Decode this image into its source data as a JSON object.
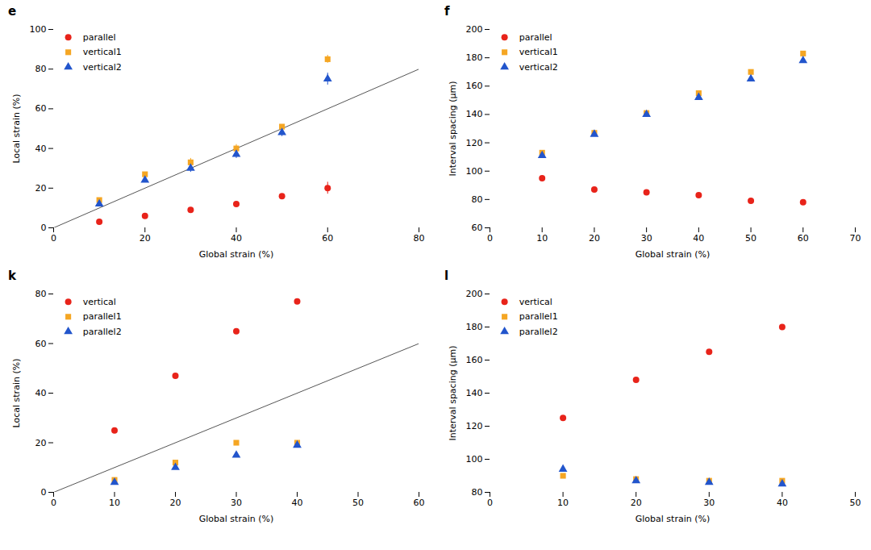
{
  "chart_data": [
    {
      "type": "scatter",
      "title": "e",
      "xlabel": "Global strain (%)",
      "ylabel": "Local strain (%)",
      "xlim": [
        0,
        80
      ],
      "ylim": [
        0,
        100
      ],
      "xticks": [
        0,
        20,
        40,
        60,
        80
      ],
      "yticks": [
        0,
        20,
        40,
        60,
        80,
        100
      ],
      "legend": "upper left",
      "series": [
        {
          "type": "line",
          "color": "#555555",
          "x": [
            0,
            80
          ],
          "values": [
            0,
            80
          ]
        },
        {
          "name": "parallel",
          "color": "#e8231a",
          "marker": "circle",
          "x": [
            10,
            20,
            30,
            40,
            50,
            60
          ],
          "values": [
            3,
            6,
            9,
            12,
            16,
            20
          ],
          "yerr": [
            0,
            0,
            0,
            0,
            0,
            3
          ]
        },
        {
          "name": "vertical1",
          "color": "#f5a623",
          "marker": "square",
          "x": [
            10,
            20,
            30,
            40,
            50,
            60
          ],
          "values": [
            14,
            27,
            33,
            40,
            51,
            85
          ],
          "yerr": [
            0,
            0,
            2,
            2,
            0,
            2
          ]
        },
        {
          "name": "vertical2",
          "color": "#2255cc",
          "marker": "triangle",
          "x": [
            10,
            20,
            30,
            40,
            50,
            60
          ],
          "values": [
            12,
            24,
            30,
            37,
            48,
            75
          ],
          "yerr": [
            1,
            0,
            2,
            2,
            2,
            3
          ]
        }
      ]
    },
    {
      "type": "scatter",
      "title": "f",
      "xlabel": "Global strain (%)",
      "ylabel": "Interval spacing (μm)",
      "xlim": [
        0,
        70
      ],
      "ylim": [
        60,
        200
      ],
      "xticks": [
        0,
        10,
        20,
        30,
        40,
        50,
        60,
        70
      ],
      "yticks": [
        60,
        80,
        100,
        120,
        140,
        160,
        180,
        200
      ],
      "legend": "upper left",
      "series": [
        {
          "name": "parallel",
          "color": "#e8231a",
          "marker": "circle",
          "x": [
            10,
            20,
            30,
            40,
            50,
            60
          ],
          "values": [
            95,
            87,
            85,
            83,
            79,
            78
          ]
        },
        {
          "name": "vertical1",
          "color": "#f5a623",
          "marker": "square",
          "x": [
            10,
            20,
            30,
            40,
            50,
            60
          ],
          "values": [
            113,
            127,
            141,
            155,
            170,
            183
          ]
        },
        {
          "name": "vertical2",
          "color": "#2255cc",
          "marker": "triangle",
          "x": [
            10,
            20,
            30,
            40,
            50,
            60
          ],
          "values": [
            111,
            126,
            140,
            152,
            165,
            178
          ]
        }
      ]
    },
    {
      "type": "scatter",
      "title": "k",
      "xlabel": "Global strain (%)",
      "ylabel": "Local strain (%)",
      "xlim": [
        0,
        60
      ],
      "ylim": [
        0,
        80
      ],
      "xticks": [
        0,
        10,
        20,
        30,
        40,
        50,
        60
      ],
      "yticks": [
        0,
        20,
        40,
        60,
        80
      ],
      "legend": "upper left",
      "series": [
        {
          "type": "line",
          "color": "#555555",
          "x": [
            0,
            60
          ],
          "values": [
            0,
            60
          ]
        },
        {
          "name": "vertical",
          "color": "#e8231a",
          "marker": "circle",
          "x": [
            10,
            20,
            30,
            40
          ],
          "values": [
            25,
            47,
            65,
            77
          ]
        },
        {
          "name": "parallel1",
          "color": "#f5a623",
          "marker": "square",
          "x": [
            10,
            20,
            30,
            40
          ],
          "values": [
            5,
            12,
            20,
            20
          ],
          "yerr": [
            0,
            0,
            0,
            0
          ]
        },
        {
          "name": "parallel2",
          "color": "#2255cc",
          "marker": "triangle",
          "x": [
            10,
            20,
            30,
            40
          ],
          "values": [
            4,
            10,
            15,
            19
          ],
          "yerr": [
            0,
            0,
            0,
            0
          ]
        }
      ]
    },
    {
      "type": "scatter",
      "title": "l",
      "xlabel": "Global strain (%)",
      "ylabel": "Interval spacing (μm)",
      "xlim": [
        0,
        50
      ],
      "ylim": [
        80,
        200
      ],
      "xticks": [
        0,
        10,
        20,
        30,
        40,
        50
      ],
      "yticks": [
        80,
        100,
        120,
        140,
        160,
        180,
        200
      ],
      "legend": "upper left",
      "series": [
        {
          "name": "vertical",
          "color": "#e8231a",
          "marker": "circle",
          "x": [
            10,
            20,
            30,
            40
          ],
          "values": [
            125,
            148,
            165,
            180
          ]
        },
        {
          "name": "parallel1",
          "color": "#f5a623",
          "marker": "square",
          "x": [
            10,
            20,
            30,
            40
          ],
          "values": [
            90,
            88,
            87,
            87
          ]
        },
        {
          "name": "parallel2",
          "color": "#2255cc",
          "marker": "triangle",
          "x": [
            10,
            20,
            30,
            40
          ],
          "values": [
            94,
            87,
            86,
            85
          ]
        }
      ]
    }
  ]
}
